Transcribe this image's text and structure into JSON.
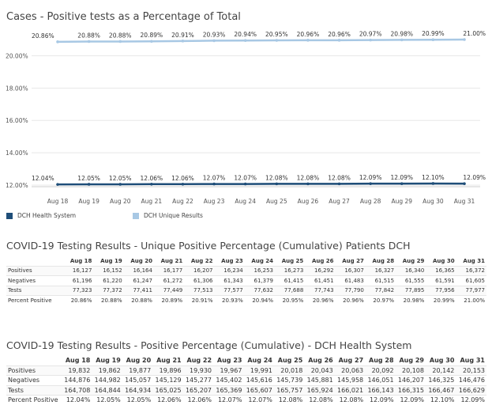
{
  "chart_data": {
    "type": "line",
    "title": "Cases - Positive tests as a Percentage of Total",
    "categories": [
      "Aug 18",
      "Aug 19",
      "Aug 20",
      "Aug 21",
      "Aug 22",
      "Aug 23",
      "Aug 24",
      "Aug 25",
      "Aug 26",
      "Aug 27",
      "Aug 28",
      "Aug 29",
      "Aug 30",
      "Aug 31"
    ],
    "y_ticks": [
      "12.00%",
      "14.00%",
      "16.00%",
      "18.00%",
      "20.00%"
    ],
    "ylim": [
      12.0,
      21.0
    ],
    "legend_placement": "bottom-left",
    "series": [
      {
        "name": "DCH Health System",
        "color": "#1f4e79",
        "values": [
          12.04,
          12.05,
          12.05,
          12.06,
          12.06,
          12.07,
          12.07,
          12.08,
          12.08,
          12.08,
          12.09,
          12.09,
          12.1,
          12.09
        ],
        "labels": [
          "12.04%",
          "12.05%",
          "12.05%",
          "12.06%",
          "12.06%",
          "12.07%",
          "12.07%",
          "12.08%",
          "12.08%",
          "12.08%",
          "12.09%",
          "12.09%",
          "12.10%",
          "12.09%"
        ]
      },
      {
        "name": "DCH Unique Results",
        "color": "#a8c8e4",
        "values": [
          20.86,
          20.88,
          20.88,
          20.89,
          20.91,
          20.93,
          20.94,
          20.95,
          20.96,
          20.96,
          20.97,
          20.98,
          20.99,
          21.0
        ],
        "labels": [
          "20.86%",
          "20.88%",
          "20.88%",
          "20.89%",
          "20.91%",
          "20.93%",
          "20.94%",
          "20.95%",
          "20.96%",
          "20.96%",
          "20.97%",
          "20.98%",
          "20.99%",
          "21.00%"
        ]
      }
    ]
  },
  "table1": {
    "title": "COVID-19 Testing Results - Unique Positive Percentage (Cumulative) Patients DCH",
    "headers": [
      "Aug 18",
      "Aug 19",
      "Aug 20",
      "Aug 21",
      "Aug 22",
      "Aug 23",
      "Aug 24",
      "Aug 25",
      "Aug 26",
      "Aug 27",
      "Aug 28",
      "Aug 29",
      "Aug 30",
      "Aug 31"
    ],
    "rows": [
      {
        "label": "Positives",
        "cells": [
          "16,127",
          "16,152",
          "16,164",
          "16,177",
          "16,207",
          "16,234",
          "16,253",
          "16,273",
          "16,292",
          "16,307",
          "16,327",
          "16,340",
          "16,365",
          "16,372"
        ]
      },
      {
        "label": "Negatives",
        "cells": [
          "61,196",
          "61,220",
          "61,247",
          "61,272",
          "61,306",
          "61,343",
          "61,379",
          "61,415",
          "61,451",
          "61,483",
          "61,515",
          "61,555",
          "61,591",
          "61,605"
        ]
      },
      {
        "label": "Tests",
        "cells": [
          "77,323",
          "77,372",
          "77,411",
          "77,449",
          "77,513",
          "77,577",
          "77,632",
          "77,688",
          "77,743",
          "77,790",
          "77,842",
          "77,895",
          "77,956",
          "77,977"
        ]
      },
      {
        "label": "Percent Positive",
        "cells": [
          "20.86%",
          "20.88%",
          "20.88%",
          "20.89%",
          "20.91%",
          "20.93%",
          "20.94%",
          "20.95%",
          "20.96%",
          "20.96%",
          "20.97%",
          "20.98%",
          "20.99%",
          "21.00%"
        ]
      }
    ]
  },
  "table2": {
    "title": "COVID-19 Testing Results - Positive Percentage (Cumulative) - DCH Health System",
    "headers": [
      "Aug 18",
      "Aug 19",
      "Aug 20",
      "Aug 21",
      "Aug 22",
      "Aug 23",
      "Aug 24",
      "Aug 25",
      "Aug 26",
      "Aug 27",
      "Aug 28",
      "Aug 29",
      "Aug 30",
      "Aug 31"
    ],
    "rows": [
      {
        "label": "Positives",
        "cells": [
          "19,832",
          "19,862",
          "19,877",
          "19,896",
          "19,930",
          "19,967",
          "19,991",
          "20,018",
          "20,043",
          "20,063",
          "20,092",
          "20,108",
          "20,142",
          "20,153"
        ]
      },
      {
        "label": "Negatives",
        "cells": [
          "144,876",
          "144,982",
          "145,057",
          "145,129",
          "145,277",
          "145,402",
          "145,616",
          "145,739",
          "145,881",
          "145,958",
          "146,051",
          "146,207",
          "146,325",
          "146,476"
        ]
      },
      {
        "label": "Tests",
        "cells": [
          "164,708",
          "164,844",
          "164,934",
          "165,025",
          "165,207",
          "165,369",
          "165,607",
          "165,757",
          "165,924",
          "166,021",
          "166,143",
          "166,315",
          "166,467",
          "166,629"
        ]
      },
      {
        "label": "Percent Positive",
        "cells": [
          "12.04%",
          "12.05%",
          "12.05%",
          "12.06%",
          "12.06%",
          "12.07%",
          "12.07%",
          "12.08%",
          "12.08%",
          "12.08%",
          "12.09%",
          "12.09%",
          "12.10%",
          "12.09%"
        ]
      }
    ]
  }
}
